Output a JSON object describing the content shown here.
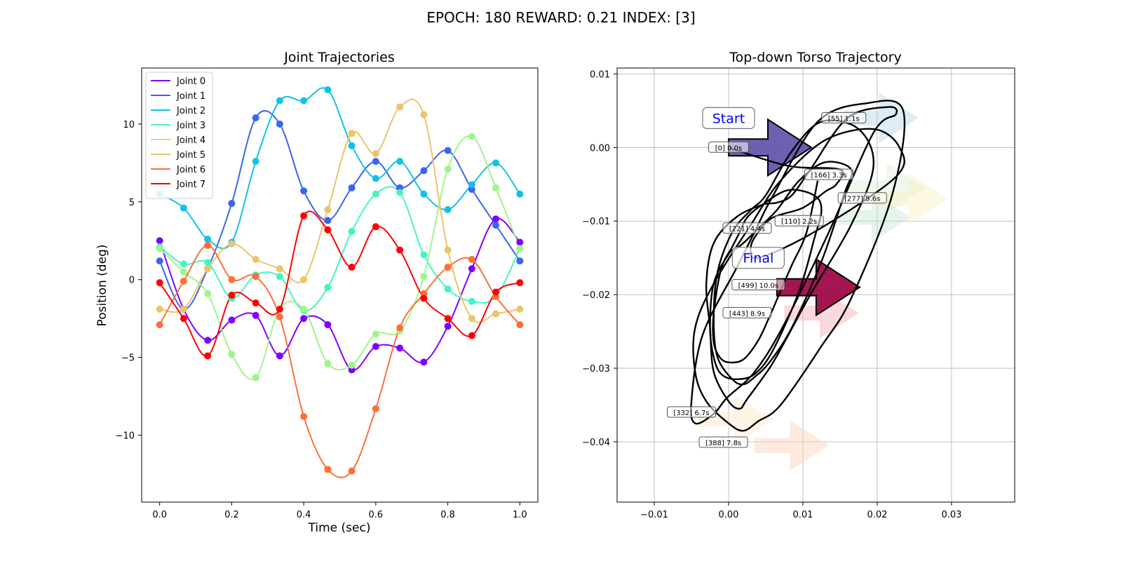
{
  "figure": {
    "suptitle": "EPOCH: 180 REWARD:   0.21 INDEX: [3]"
  },
  "chart_data": [
    {
      "type": "line",
      "title": "Joint Trajectories",
      "xlabel": "Time (sec)",
      "ylabel": "Position (deg)",
      "xlim": [
        -0.05,
        1.05
      ],
      "ylim": [
        -14.3,
        13.6
      ],
      "xticks": [
        0.0,
        0.2,
        0.4,
        0.6,
        0.8,
        1.0
      ],
      "xtick_labels": [
        "0.0",
        "0.2",
        "0.4",
        "0.6",
        "0.8",
        "1.0"
      ],
      "yticks": [
        -10,
        -5,
        0,
        5,
        10
      ],
      "ytick_labels": [
        "−10",
        "−5",
        "0",
        "5",
        "10"
      ],
      "grid": false,
      "legend_position": "upper-left",
      "x": [
        0.0,
        0.0667,
        0.1333,
        0.2,
        0.2667,
        0.3333,
        0.4,
        0.4667,
        0.5333,
        0.6,
        0.6667,
        0.7333,
        0.8,
        0.8667,
        0.9333,
        1.0
      ],
      "series": [
        {
          "name": "Joint 0",
          "color": "#7f00ff",
          "values": [
            2.5,
            -1.9,
            -3.9,
            -2.6,
            -2.3,
            -4.9,
            -2.5,
            -2.9,
            -5.8,
            -4.3,
            -4.4,
            -5.3,
            -3.0,
            0.7,
            3.9,
            2.4
          ]
        },
        {
          "name": "Joint 1",
          "color": "#3a64f5",
          "values": [
            1.2,
            -1.9,
            0.7,
            4.9,
            10.4,
            10.0,
            5.7,
            3.8,
            5.9,
            7.6,
            5.9,
            7.0,
            8.3,
            5.8,
            3.5,
            1.2
          ]
        },
        {
          "name": "Joint 2",
          "color": "#13c2e3",
          "values": [
            5.5,
            4.6,
            2.6,
            2.4,
            7.6,
            11.5,
            11.5,
            12.2,
            8.6,
            6.5,
            7.6,
            5.5,
            4.5,
            6.1,
            7.5,
            5.5
          ]
        },
        {
          "name": "Joint 3",
          "color": "#45f3c3",
          "values": [
            2.1,
            1.0,
            1.1,
            -1.2,
            0.3,
            0.2,
            -2.0,
            -0.5,
            3.1,
            5.5,
            5.6,
            1.6,
            -0.6,
            -1.4,
            -1.1,
            2.0
          ]
        },
        {
          "name": "Joint 4",
          "color": "#a0f48c",
          "values": [
            2.0,
            0.5,
            -0.9,
            -4.8,
            -6.3,
            -1.9,
            -1.9,
            -5.4,
            -5.5,
            -3.5,
            -3.3,
            0.2,
            7.1,
            9.2,
            5.9,
            2.0
          ]
        },
        {
          "name": "Joint 5",
          "color": "#ebc46b",
          "values": [
            -1.9,
            -1.9,
            0.7,
            2.3,
            1.3,
            0.7,
            0.0,
            4.5,
            9.4,
            8.1,
            11.1,
            10.6,
            1.9,
            -2.5,
            -2.2,
            -1.9
          ]
        },
        {
          "name": "Joint 6",
          "color": "#fe6e38",
          "values": [
            -2.9,
            -0.1,
            2.2,
            0.0,
            0.2,
            -2.4,
            -8.8,
            -12.2,
            -12.3,
            -8.3,
            -3.1,
            -0.9,
            0.8,
            1.3,
            -1.1,
            -2.9
          ]
        },
        {
          "name": "Joint 7",
          "color": "#ff0000",
          "values": [
            -0.2,
            -2.5,
            -4.9,
            -1.0,
            -1.5,
            -1.9,
            4.1,
            3.2,
            0.8,
            3.4,
            1.9,
            -1.2,
            -2.5,
            -3.6,
            -0.8,
            -0.2
          ]
        }
      ]
    },
    {
      "type": "scatter",
      "title": "Top-down Torso Trajectory",
      "xlim": [
        -0.015,
        0.0385
      ],
      "ylim": [
        -0.0482,
        0.0108
      ],
      "xticks": [
        -0.01,
        0.0,
        0.01,
        0.02,
        0.03
      ],
      "xtick_labels": [
        "−0.01",
        "0.00",
        "0.01",
        "0.02",
        "0.03"
      ],
      "yticks": [
        -0.04,
        -0.03,
        -0.02,
        -0.01,
        0.0,
        0.01
      ],
      "ytick_labels": [
        "−0.04",
        "−0.03",
        "−0.02",
        "−0.01",
        "0.00",
        "0.01"
      ],
      "grid": true,
      "path_x": [
        0.0,
        0.008,
        0.015,
        0.0145,
        0.013,
        0.01,
        0.006,
        0.004,
        0.003,
        0.004,
        0.0115,
        0.0225,
        0.023,
        0.0195,
        0.013,
        0.007,
        0.003,
        -0.002,
        -0.0045,
        -0.0045,
        -0.003,
        0.0,
        0.002,
        0.004,
        0.007,
        0.0125,
        0.0165,
        0.022,
        0.0235,
        0.0185,
        0.012,
        0.006,
        0.0035,
        0.001,
        -0.0035,
        -0.005,
        -0.0045,
        -0.002,
        -0.0002,
        0.0035,
        0.0075,
        0.0135,
        0.0195,
        0.0225,
        0.0215,
        0.016,
        0.011,
        0.0085,
        0.0065,
        0.0045,
        0.001,
        -0.002,
        -0.003,
        -0.0025,
        -0.002,
        0.0,
        0.0015,
        0.0025,
        0.0055,
        0.0075,
        0.011,
        0.0165,
        0.0195,
        0.0175,
        0.0125,
        0.0085,
        0.005,
        0.003,
        0.0005,
        -0.0015,
        -0.002,
        -0.0015,
        0.0005,
        0.002,
        0.0035,
        0.0055,
        0.0085,
        0.0125,
        0.0155,
        0.0165,
        0.013,
        0.0095,
        0.0065,
        0.004,
        0.0022,
        0.001,
        0.0,
        -0.002,
        -0.0025,
        -0.002,
        -0.001,
        0.001,
        0.0035,
        0.006,
        0.0095,
        0.0115,
        0.0125,
        0.0115,
        0.008,
        0.0045,
        0.0025,
        0.0015,
        0.0005,
        -0.001,
        -0.002,
        -0.002,
        -0.0012,
        0.0,
        0.002,
        0.004,
        0.0055,
        0.007,
        0.0085,
        0.0105,
        0.012
      ],
      "path_y": [
        0.0,
        -0.0025,
        -0.003,
        -0.005,
        -0.006,
        -0.0082,
        -0.0095,
        -0.0115,
        -0.0135,
        -0.015,
        -0.0115,
        -0.004,
        0.0,
        0.0025,
        0.001,
        -0.0045,
        -0.0105,
        -0.0185,
        -0.0245,
        -0.0305,
        -0.0345,
        -0.0375,
        -0.0385,
        -0.0372,
        -0.035,
        -0.027,
        -0.0205,
        -0.0065,
        0.005,
        0.006,
        0.0035,
        -0.0065,
        -0.0115,
        -0.0165,
        -0.0255,
        -0.0345,
        -0.0375,
        -0.0362,
        -0.034,
        -0.0305,
        -0.024,
        -0.0115,
        0.002,
        0.0045,
        0.0055,
        0.004,
        -0.003,
        -0.0065,
        -0.0075,
        -0.0078,
        -0.0095,
        -0.013,
        -0.0185,
        -0.0245,
        -0.0305,
        -0.0345,
        -0.0355,
        -0.0342,
        -0.03,
        -0.0265,
        -0.02,
        -0.0105,
        -0.0025,
        0.0025,
        0.0035,
        -0.0005,
        -0.0065,
        -0.0085,
        -0.0115,
        -0.017,
        -0.0235,
        -0.0285,
        -0.0315,
        -0.0322,
        -0.0312,
        -0.0292,
        -0.0245,
        -0.0155,
        -0.0065,
        -0.003,
        -0.002,
        -0.0045,
        -0.0085,
        -0.011,
        -0.0128,
        -0.0138,
        -0.0145,
        -0.0185,
        -0.0245,
        -0.0285,
        -0.0308,
        -0.0315,
        -0.0308,
        -0.0275,
        -0.0195,
        -0.0125,
        -0.0085,
        -0.0065,
        -0.0058,
        -0.0078,
        -0.0095,
        -0.0115,
        -0.0135,
        -0.0165,
        -0.0225,
        -0.0265,
        -0.0285,
        -0.0292,
        -0.0288,
        -0.0262,
        -0.023,
        -0.0195,
        -0.016,
        -0.0115,
        -0.0045
      ],
      "annotations": [
        {
          "text": "Start",
          "x": 0.0,
          "y": 0.004
        },
        {
          "text": "Final",
          "x": 0.004,
          "y": -0.015
        }
      ],
      "markers": [
        {
          "label": "[0] 0.0s",
          "x": 0.0,
          "y": 0.0
        },
        {
          "label": "[55] 1.1s",
          "x": 0.0155,
          "y": 0.004
        },
        {
          "label": "[110] 2.2s",
          "x": 0.0095,
          "y": -0.01
        },
        {
          "label": "[166] 3.3s",
          "x": 0.0135,
          "y": -0.0037
        },
        {
          "label": "[221] 4.4s",
          "x": 0.0025,
          "y": -0.011
        },
        {
          "label": "[277] 5.6s",
          "x": 0.018,
          "y": -0.0069
        },
        {
          "label": "[332] 6.7s",
          "x": -0.005,
          "y": -0.036
        },
        {
          "label": "[388] 7.8s",
          "x": -0.0007,
          "y": -0.0401
        },
        {
          "label": "[443] 8.9s",
          "x": 0.0025,
          "y": -0.0225
        },
        {
          "label": "[499] 10.0s",
          "x": 0.004,
          "y": -0.0187
        }
      ],
      "heading_arrows": [
        {
          "x": 0.0,
          "y": 0.0,
          "color": "#5c4fa8",
          "alpha": 0.9,
          "scale": 1.0,
          "border": true
        },
        {
          "x": 0.0155,
          "y": 0.004,
          "color": "#9ecae1",
          "alpha": 0.35,
          "scale": 0.9,
          "border": false
        },
        {
          "x": 0.0145,
          "y": -0.0095,
          "color": "#b5e3c9",
          "alpha": 0.35,
          "scale": 0.9,
          "border": false
        },
        {
          "x": 0.0165,
          "y": -0.0055,
          "color": "#d4ecc6",
          "alpha": 0.35,
          "scale": 0.9,
          "border": false
        },
        {
          "x": 0.0195,
          "y": -0.007,
          "color": "#f8f0c0",
          "alpha": 0.45,
          "scale": 0.9,
          "border": false
        },
        {
          "x": -0.004,
          "y": -0.037,
          "color": "#fde6c8",
          "alpha": 0.45,
          "scale": 0.9,
          "border": false
        },
        {
          "x": 0.0035,
          "y": -0.0405,
          "color": "#fcd0b5",
          "alpha": 0.45,
          "scale": 0.9,
          "border": false
        },
        {
          "x": 0.0075,
          "y": -0.0225,
          "color": "#f7a8b0",
          "alpha": 0.45,
          "scale": 0.9,
          "border": false
        },
        {
          "x": 0.0065,
          "y": -0.019,
          "color": "#9e0a4a",
          "alpha": 0.95,
          "scale": 1.0,
          "border": true
        }
      ]
    }
  ]
}
